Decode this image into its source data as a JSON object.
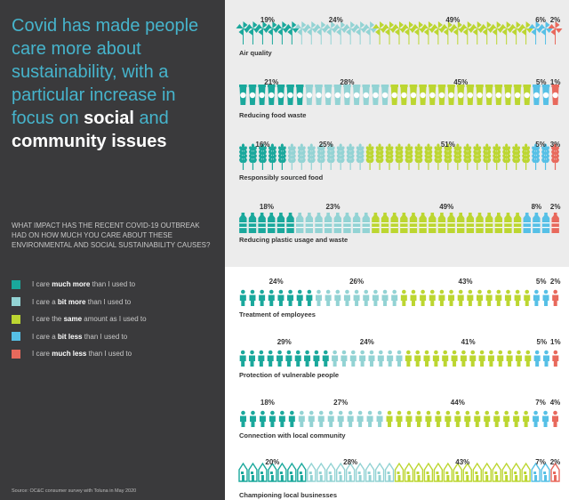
{
  "header": {
    "headline_part1": "Covid has made people care more about sustainability, with a particular increase in focus on",
    "headline_bold1": "social",
    "headline_part2": "and",
    "headline_bold2": "community issues"
  },
  "question": "What impact has the recent COVID-19 outbreak had on how much you care about these environmental and social sustainability causes?",
  "legend": [
    {
      "pre": "I care",
      "bold": "much more",
      "post": "than I used to",
      "color": "#1aa89c"
    },
    {
      "pre": "I care a",
      "bold": "bit more",
      "post": "than I used to",
      "color": "#93d3d4"
    },
    {
      "pre": "I care the",
      "bold": "same",
      "post": "amount as I used to",
      "color": "#bcd631"
    },
    {
      "pre": "I care a",
      "bold": "bit less",
      "post": "than I used to",
      "color": "#56c0e6"
    },
    {
      "pre": "I care",
      "bold": "much less",
      "post": "than I used to",
      "color": "#e8695c"
    }
  ],
  "source": "Source: OC&C consumer survey with Toluna in May 2020",
  "chart_data": {
    "type": "bar",
    "orientation": "horizontal-stacked",
    "unit": "%",
    "series_names": [
      "I care much more than I used to",
      "I care a bit more than I used to",
      "I care the same amount as I used to",
      "I care a bit less than I used to",
      "I care much less than I used to"
    ],
    "colors": [
      "#1aa89c",
      "#93d3d4",
      "#bcd631",
      "#56c0e6",
      "#e8695c"
    ],
    "groups": [
      "environmental",
      "social"
    ],
    "rows": [
      {
        "label": "Air quality",
        "icon": "pinwheel",
        "group": "environmental",
        "values": [
          19,
          24,
          49,
          6,
          2
        ]
      },
      {
        "label": "Reducing food waste",
        "icon": "food-container",
        "group": "environmental",
        "values": [
          21,
          28,
          45,
          5,
          1
        ]
      },
      {
        "label": "Responsibly sourced food",
        "icon": "wheat",
        "group": "environmental",
        "values": [
          16,
          25,
          51,
          5,
          3
        ]
      },
      {
        "label": "Reducing plastic usage and waste",
        "icon": "bottle",
        "group": "environmental",
        "values": [
          18,
          23,
          49,
          8,
          2
        ]
      },
      {
        "label": "Treatment of employees",
        "icon": "person",
        "group": "social",
        "values": [
          24,
          26,
          43,
          5,
          2
        ]
      },
      {
        "label": "Protection of vulnerable people",
        "icon": "person",
        "group": "social",
        "values": [
          29,
          24,
          41,
          5,
          1
        ]
      },
      {
        "label": "Connection with local community",
        "icon": "person",
        "group": "social",
        "values": [
          18,
          27,
          44,
          7,
          4
        ]
      },
      {
        "label": "Championing local businesses",
        "icon": "shop",
        "group": "social",
        "values": [
          20,
          28,
          43,
          7,
          2
        ]
      }
    ]
  }
}
